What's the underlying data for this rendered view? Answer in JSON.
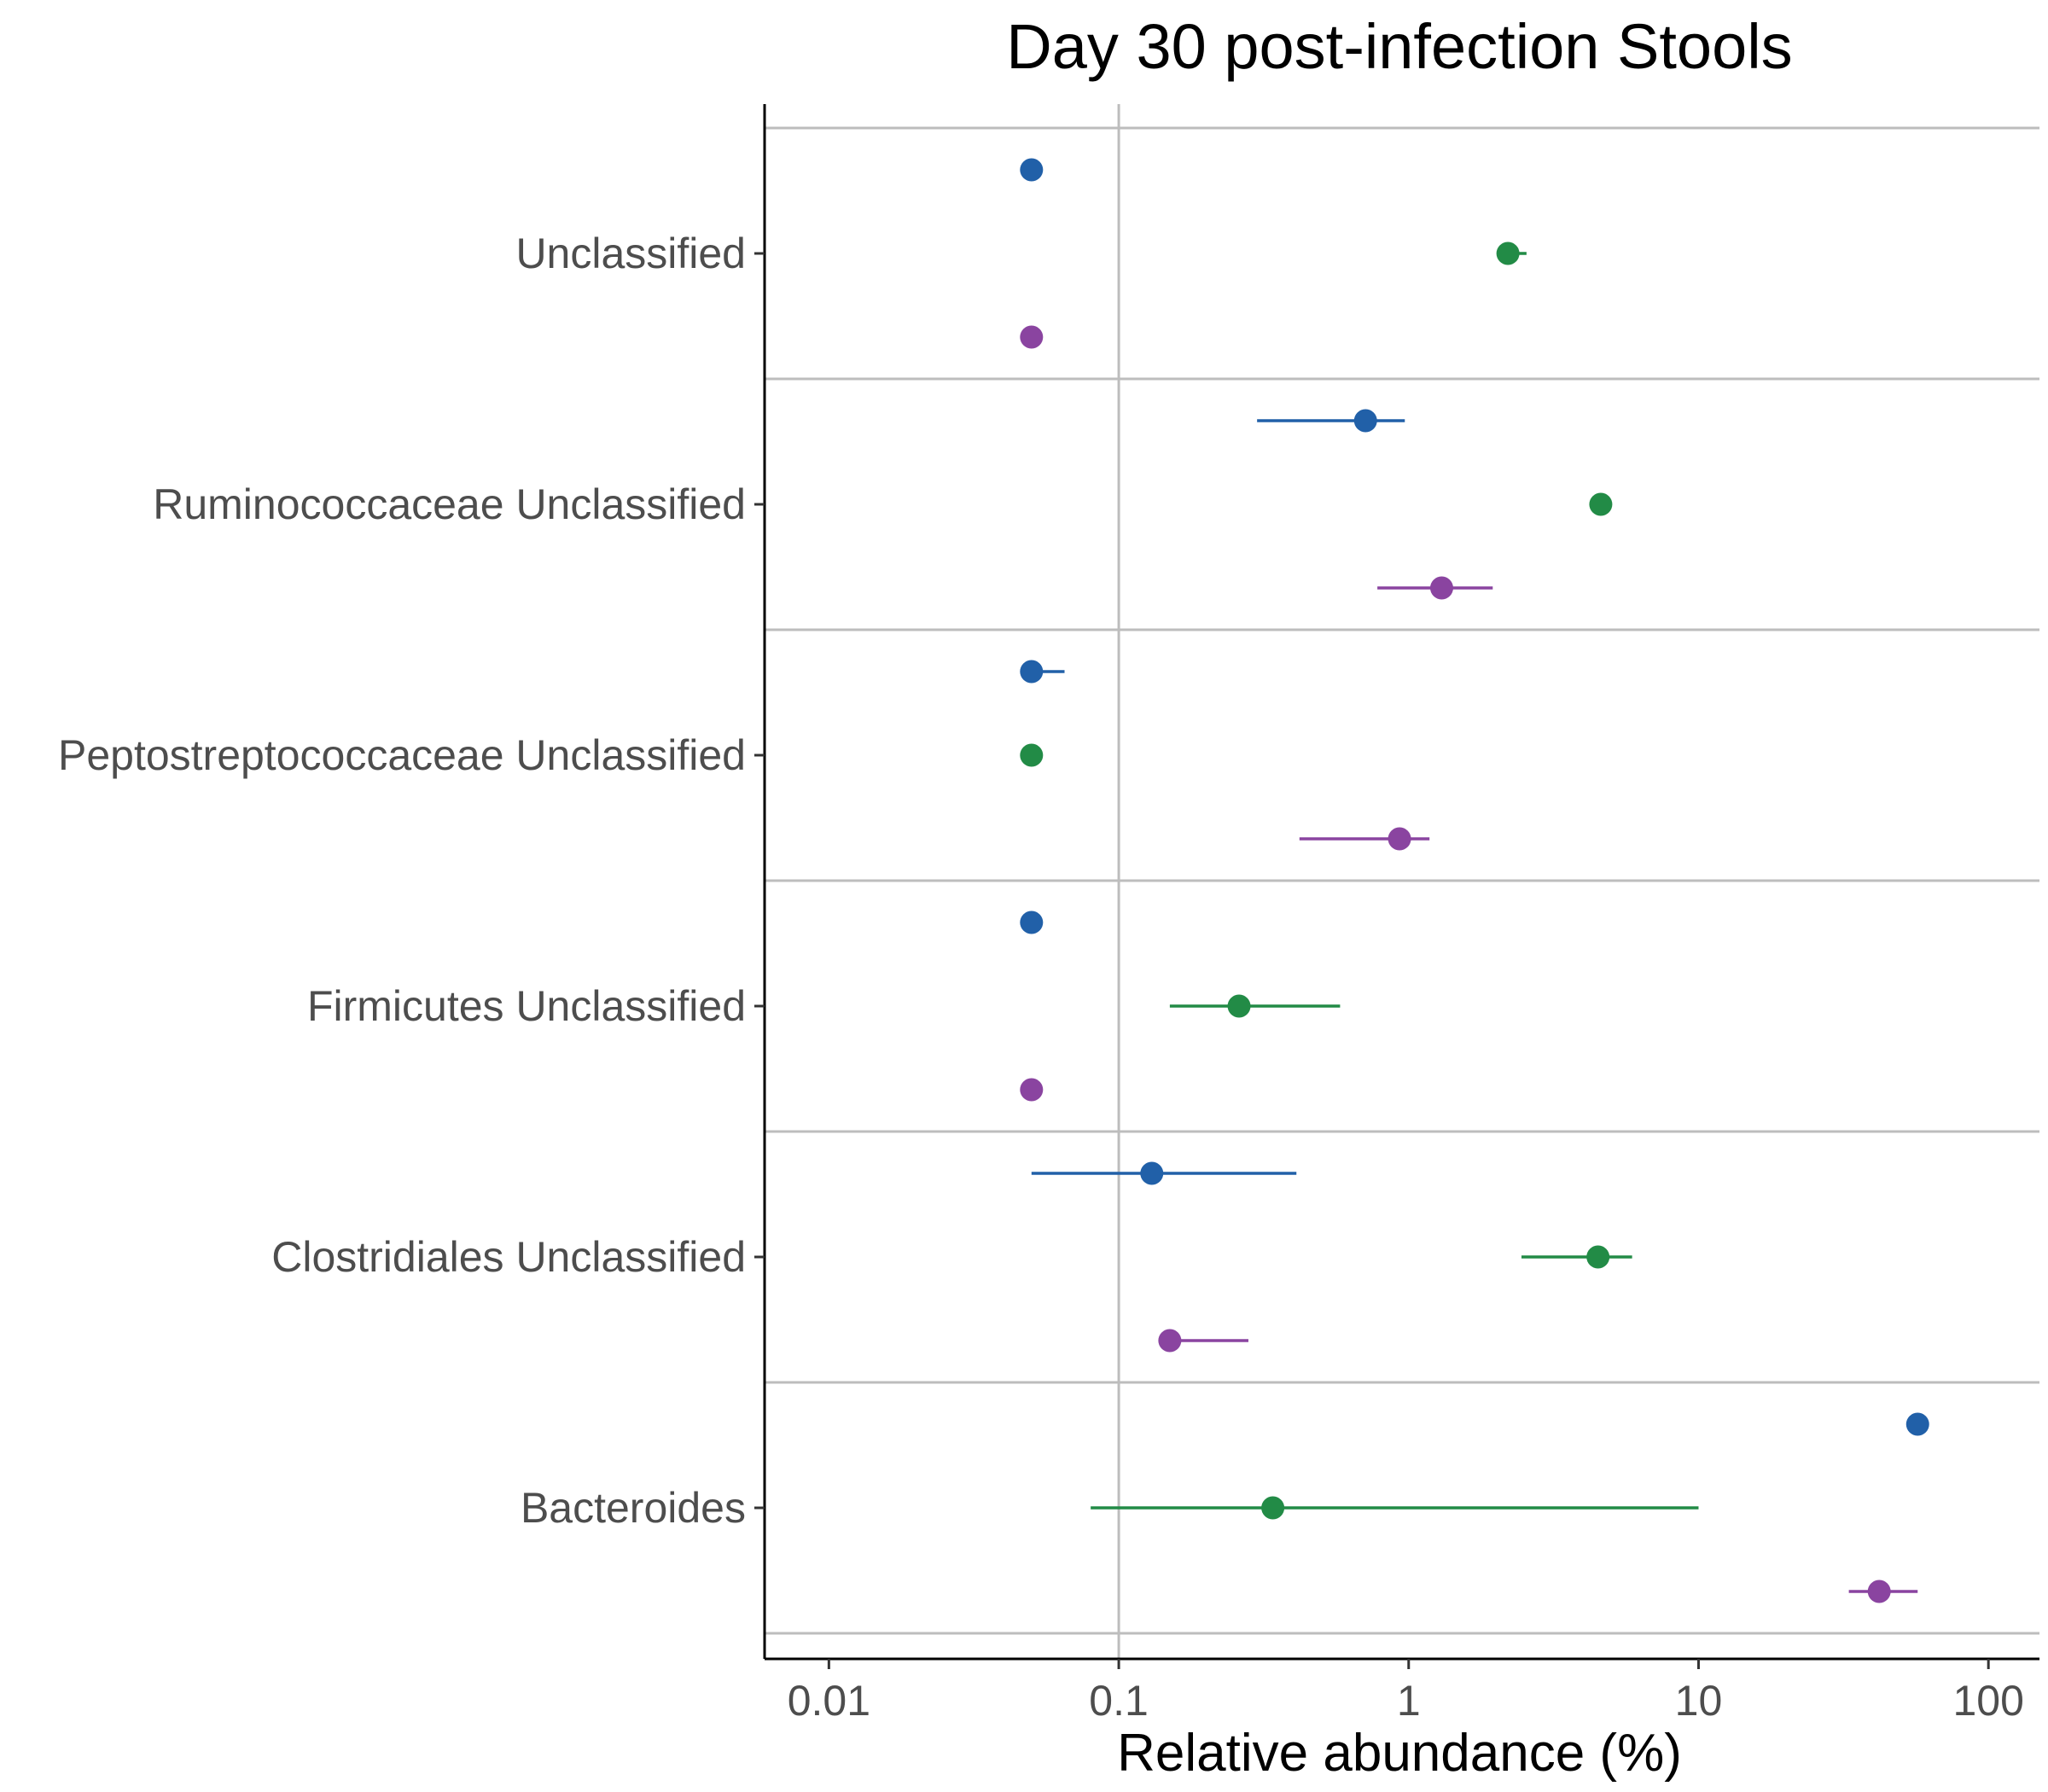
{
  "chart_data": {
    "type": "scatter",
    "title": "Day 30 post-infection Stools",
    "xlabel": "Relative abundance (%)",
    "ylabel": "",
    "x_scale": "log10",
    "xlim": [
      0.006,
      150
    ],
    "x_ticks": [
      0.01,
      0.1,
      1,
      10,
      100
    ],
    "x_tick_labels": [
      "0.01",
      "0.1",
      "1",
      "10",
      "100"
    ],
    "grid": "major x gridline at 0.1; horizontal separators between taxa",
    "legend": "none",
    "series_colors": [
      "#2160a8",
      "#228b46",
      "#8a44a0"
    ],
    "categories": [
      "Unclassified",
      "Ruminococcaceae Unclassified",
      "Peptostreptococcaceae Unclassified",
      "Firmicutes Unclassified",
      "Clostridiales Unclassified",
      "Bacteroides"
    ],
    "series": [
      {
        "color": "#2160a8",
        "points": [
          {
            "category": "Unclassified",
            "value": 0.05
          },
          {
            "category": "Ruminococcaceae Unclassified",
            "value": 0.71,
            "low": 0.3,
            "high": 0.97
          },
          {
            "category": "Peptostreptococcaceae Unclassified",
            "value": 0.05,
            "low": 0.05,
            "high": 0.065
          },
          {
            "category": "Firmicutes Unclassified",
            "value": 0.05
          },
          {
            "category": "Clostridiales Unclassified",
            "value": 0.13,
            "low": 0.05,
            "high": 0.41
          },
          {
            "category": "Bacteroides",
            "value": 57
          }
        ]
      },
      {
        "color": "#228b46",
        "points": [
          {
            "category": "Unclassified",
            "value": 2.2,
            "low": 2.05,
            "high": 2.55
          },
          {
            "category": "Ruminococcaceae Unclassified",
            "value": 4.6
          },
          {
            "category": "Peptostreptococcaceae Unclassified",
            "value": 0.05
          },
          {
            "category": "Firmicutes Unclassified",
            "value": 0.26,
            "low": 0.15,
            "high": 0.58
          },
          {
            "category": "Clostridiales Unclassified",
            "value": 4.5,
            "low": 2.45,
            "high": 5.9
          },
          {
            "category": "Bacteroides",
            "value": 0.34,
            "low": 0.08,
            "high": 10
          }
        ]
      },
      {
        "color": "#8a44a0",
        "points": [
          {
            "category": "Unclassified",
            "value": 0.05
          },
          {
            "category": "Ruminococcaceae Unclassified",
            "value": 1.3,
            "low": 0.78,
            "high": 1.95
          },
          {
            "category": "Peptostreptococcaceae Unclassified",
            "value": 0.93,
            "low": 0.42,
            "high": 1.18
          },
          {
            "category": "Firmicutes Unclassified",
            "value": 0.05
          },
          {
            "category": "Clostridiales Unclassified",
            "value": 0.15,
            "low": 0.15,
            "high": 0.28
          },
          {
            "category": "Bacteroides",
            "value": 42,
            "low": 33,
            "high": 57
          }
        ]
      }
    ]
  }
}
